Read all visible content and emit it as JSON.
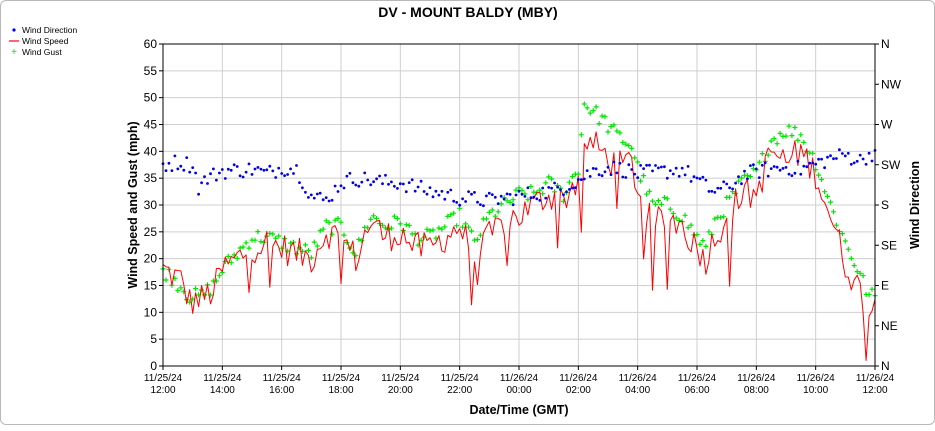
{
  "chart_data": {
    "type": "line",
    "title": "DV - MOUNT BALDY (MBY)",
    "xlabel": "Date/Time (GMT)",
    "ylabel": "Wind Speed and Gust (mph)",
    "y2label": "Wind Direction",
    "ylim": [
      0,
      60
    ],
    "yticks": [
      "0",
      "5",
      "10",
      "15",
      "20",
      "25",
      "30",
      "35",
      "40",
      "45",
      "50",
      "55",
      "60"
    ],
    "y2ticks": [
      "N",
      "NE",
      "E",
      "SE",
      "S",
      "SW",
      "W",
      "NW",
      "N"
    ],
    "xlim_hours": [
      0,
      24
    ],
    "xticks": [
      {
        "date": "11/25/24",
        "time": "12:00"
      },
      {
        "date": "11/25/24",
        "time": "14:00"
      },
      {
        "date": "11/25/24",
        "time": "16:00"
      },
      {
        "date": "11/25/24",
        "time": "18:00"
      },
      {
        "date": "11/25/24",
        "time": "20:00"
      },
      {
        "date": "11/25/24",
        "time": "22:00"
      },
      {
        "date": "11/26/24",
        "time": "00:00"
      },
      {
        "date": "11/26/24",
        "time": "02:00"
      },
      {
        "date": "11/26/24",
        "time": "04:00"
      },
      {
        "date": "11/26/24",
        "time": "06:00"
      },
      {
        "date": "11/26/24",
        "time": "08:00"
      },
      {
        "date": "11/26/24",
        "time": "10:00"
      },
      {
        "date": "11/26/24",
        "time": "12:00"
      }
    ],
    "grid": true,
    "legend": "top-left",
    "series": [
      {
        "name": "Wind Direction",
        "marker": "dot",
        "color": "#0000e6",
        "axis": "right"
      },
      {
        "name": "Wind Speed",
        "marker": "line",
        "color": "#ff0000",
        "axis": "left"
      },
      {
        "name": "Wind Gust",
        "marker": "plus",
        "color": "#00e600",
        "axis": "left"
      }
    ],
    "speed_anchors": [
      [
        0,
        18
      ],
      [
        0.6,
        16
      ],
      [
        0.9,
        12
      ],
      [
        1.3,
        12.5
      ],
      [
        1.7,
        14
      ],
      [
        2,
        18
      ],
      [
        2.5,
        20
      ],
      [
        3,
        22
      ],
      [
        3.5,
        23
      ],
      [
        4,
        22
      ],
      [
        4.5,
        21
      ],
      [
        5,
        20
      ],
      [
        5.5,
        25
      ],
      [
        6,
        24
      ],
      [
        6.5,
        20
      ],
      [
        7,
        27
      ],
      [
        7.5,
        24
      ],
      [
        8,
        25
      ],
      [
        8.5,
        22
      ],
      [
        9,
        22
      ],
      [
        10,
        26
      ],
      [
        10.5,
        20
      ],
      [
        11,
        24
      ],
      [
        11.5,
        27
      ],
      [
        12,
        28
      ],
      [
        12.5,
        30
      ],
      [
        13,
        32
      ],
      [
        13.5,
        31
      ],
      [
        14,
        35
      ],
      [
        14.3,
        42
      ],
      [
        14.8,
        40
      ],
      [
        15.3,
        37
      ],
      [
        15.8,
        38
      ],
      [
        16,
        33
      ],
      [
        16.5,
        26
      ],
      [
        17,
        28
      ],
      [
        17.5,
        26
      ],
      [
        18,
        22
      ],
      [
        18.3,
        20
      ],
      [
        18.6,
        24
      ],
      [
        19,
        28
      ],
      [
        19.5,
        32
      ],
      [
        20,
        32
      ],
      [
        20.5,
        40
      ],
      [
        21,
        38
      ],
      [
        21.5,
        40
      ],
      [
        22,
        36
      ],
      [
        22.5,
        28
      ],
      [
        23,
        19
      ],
      [
        23.5,
        14
      ],
      [
        23.8,
        10
      ],
      [
        24,
        12
      ]
    ],
    "gust_anchors": [
      [
        0,
        18
      ],
      [
        0.6,
        15
      ],
      [
        0.9,
        13
      ],
      [
        1.3,
        13
      ],
      [
        1.7,
        15
      ],
      [
        2,
        18
      ],
      [
        2.5,
        21
      ],
      [
        3,
        24
      ],
      [
        3.5,
        24
      ],
      [
        4,
        23
      ],
      [
        4.5,
        22
      ],
      [
        5,
        21
      ],
      [
        5.5,
        26
      ],
      [
        6,
        26
      ],
      [
        6.5,
        21
      ],
      [
        7,
        28
      ],
      [
        7.5,
        26
      ],
      [
        8,
        27
      ],
      [
        8.5,
        24
      ],
      [
        9,
        24
      ],
      [
        10,
        28
      ],
      [
        10.5,
        23
      ],
      [
        11,
        28
      ],
      [
        11.5,
        30
      ],
      [
        12,
        32
      ],
      [
        12.5,
        32
      ],
      [
        13,
        34
      ],
      [
        13.5,
        32
      ],
      [
        14,
        37
      ],
      [
        14.2,
        49
      ],
      [
        14.8,
        46
      ],
      [
        15.3,
        43
      ],
      [
        15.8,
        41
      ],
      [
        16,
        37
      ],
      [
        16.5,
        30
      ],
      [
        17,
        30
      ],
      [
        17.5,
        28
      ],
      [
        18,
        24
      ],
      [
        18.3,
        22
      ],
      [
        18.6,
        27
      ],
      [
        19,
        30
      ],
      [
        19.5,
        34
      ],
      [
        20,
        36
      ],
      [
        20.5,
        42
      ],
      [
        21,
        44
      ],
      [
        21.5,
        43
      ],
      [
        22,
        38
      ],
      [
        22.5,
        30
      ],
      [
        23,
        23
      ],
      [
        23.5,
        17
      ],
      [
        23.8,
        13
      ],
      [
        24,
        13
      ]
    ],
    "direction_anchors": [
      [
        0,
        225
      ],
      [
        0.5,
        228
      ],
      [
        1,
        225
      ],
      [
        1.2,
        200
      ],
      [
        1.5,
        210
      ],
      [
        2,
        218
      ],
      [
        3,
        220
      ],
      [
        3.5,
        215
      ],
      [
        4,
        222
      ],
      [
        4.5,
        220
      ],
      [
        5,
        190
      ],
      [
        5.5,
        185
      ],
      [
        6,
        205
      ],
      [
        6.5,
        210
      ],
      [
        7,
        208
      ],
      [
        7.5,
        205
      ],
      [
        8,
        205
      ],
      [
        8.5,
        200
      ],
      [
        9,
        195
      ],
      [
        9.5,
        192
      ],
      [
        10,
        188
      ],
      [
        11,
        185
      ],
      [
        12,
        190
      ],
      [
        13,
        195
      ],
      [
        13.5,
        200
      ],
      [
        14,
        208
      ],
      [
        14.5,
        218
      ],
      [
        15,
        222
      ],
      [
        15.5,
        220
      ],
      [
        16,
        215
      ],
      [
        17,
        218
      ],
      [
        17.5,
        220
      ],
      [
        18,
        208
      ],
      [
        18.5,
        196
      ],
      [
        19,
        198
      ],
      [
        19.5,
        212
      ],
      [
        20,
        218
      ],
      [
        21,
        222
      ],
      [
        21.5,
        220
      ],
      [
        22,
        226
      ],
      [
        22.5,
        232
      ],
      [
        23,
        236
      ],
      [
        23.5,
        230
      ],
      [
        24,
        240
      ]
    ]
  },
  "legend": {
    "items": [
      {
        "label": "Wind Direction",
        "color": "#0000e6"
      },
      {
        "label": "Wind Speed",
        "color": "#ff0000"
      },
      {
        "label": "Wind Gust",
        "color": "#00e600"
      }
    ]
  }
}
